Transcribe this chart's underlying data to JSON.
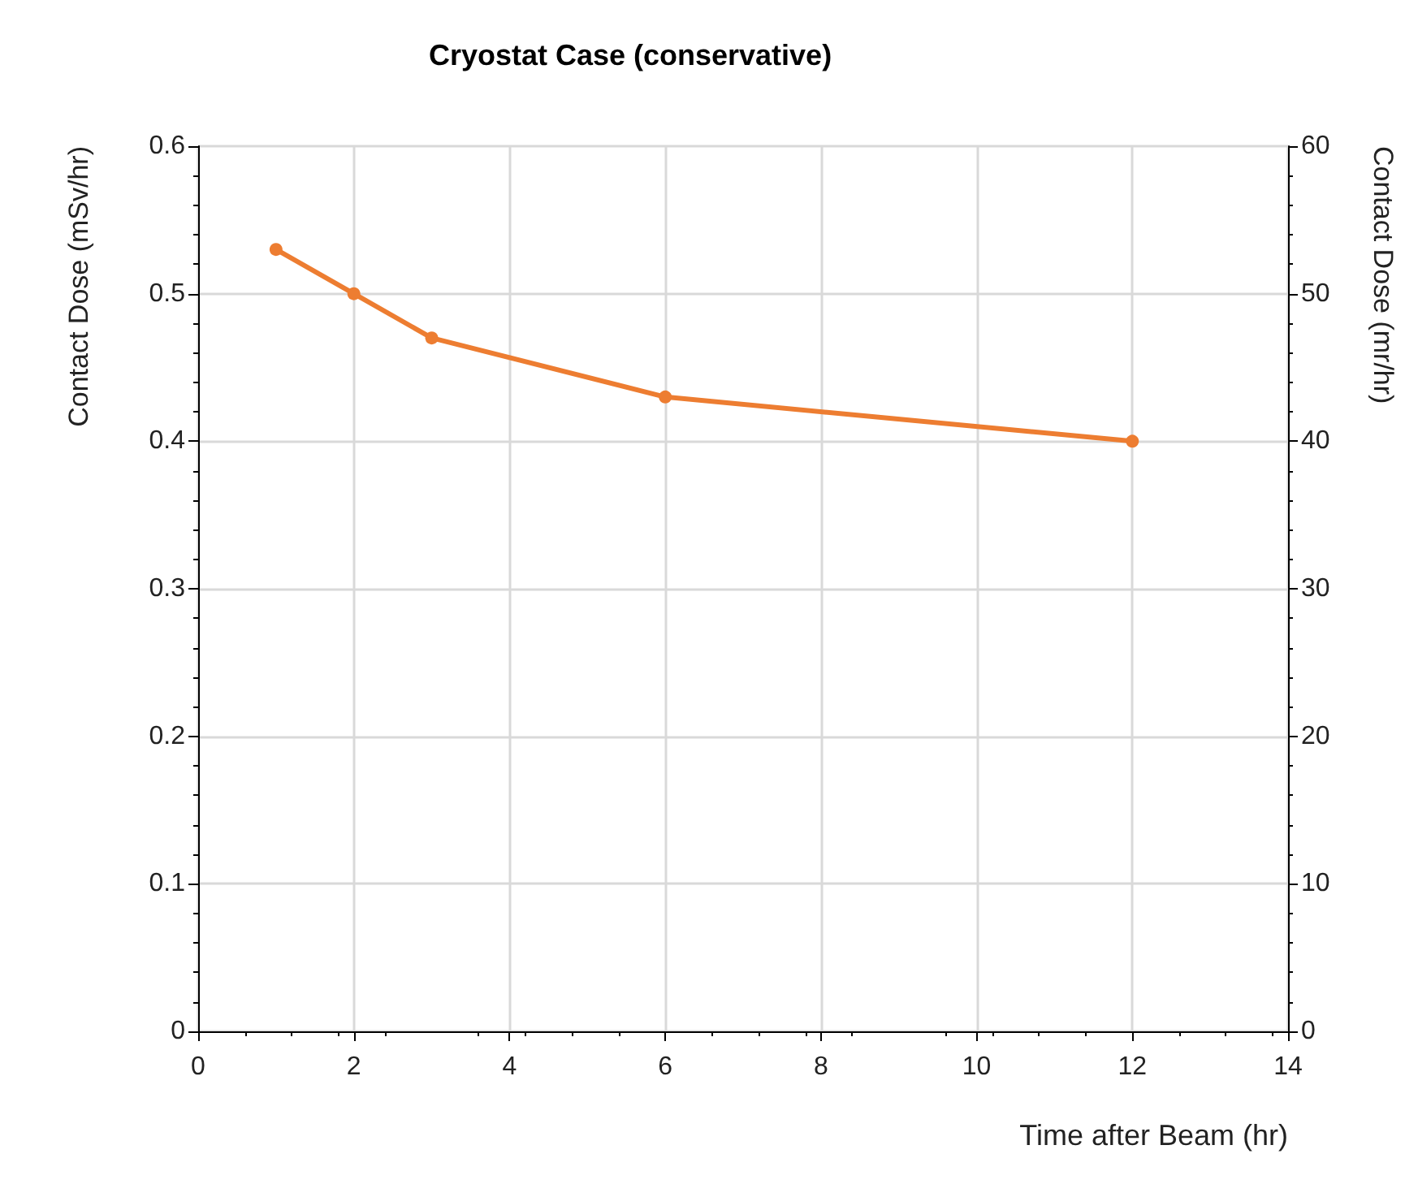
{
  "chart_data": {
    "type": "line",
    "title": "Cryostat Case (conservative)",
    "xlabel": "Time after Beam (hr)",
    "ylabel": "Contact Dose (mSv/hr)",
    "y2label": "Contact Dose (mr/hr)",
    "x": [
      1,
      2,
      3,
      6,
      12
    ],
    "series": [
      {
        "color": "#ed7d31",
        "values": [
          0.53,
          0.5,
          0.47,
          0.43,
          0.4
        ]
      }
    ],
    "xlim": [
      0,
      14
    ],
    "xticks": [
      0,
      2,
      4,
      6,
      8,
      10,
      12,
      14
    ],
    "ylim": [
      0,
      0.6
    ],
    "yticks": [
      0,
      0.1,
      0.2,
      0.3,
      0.4,
      0.5,
      0.6
    ],
    "y2lim": [
      0,
      60
    ],
    "y2ticks": [
      0,
      10,
      20,
      30,
      40,
      50,
      60
    ],
    "grid": true,
    "marker": "circle",
    "line_style": "solid"
  }
}
